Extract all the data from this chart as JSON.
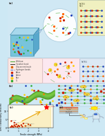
{
  "bg_color": "#cde8f4",
  "top_section_bg": "#cde8f4",
  "panel_3d_bg": "#7ec8dc",
  "panel_circle_bg": "#f0f8ff",
  "panel_yellow_bg": "#f0f0c8",
  "panel_pink_bg": "#f8e4e0",
  "panel_blue_center_bg": "#e8f0f8",
  "panel_blue_right_bg": "#dce8f0",
  "panel_middle_bg": "#cde8f4",
  "panel_green_ribbon_bg": "#cde8f4",
  "scatter_bg": "#fafaf8",
  "app_bg": "#ddeef8",
  "scatter_xlabel": "Tensile strength (MPa)",
  "scatter_ylabel": "Ionic conductivity (mS/cm)"
}
